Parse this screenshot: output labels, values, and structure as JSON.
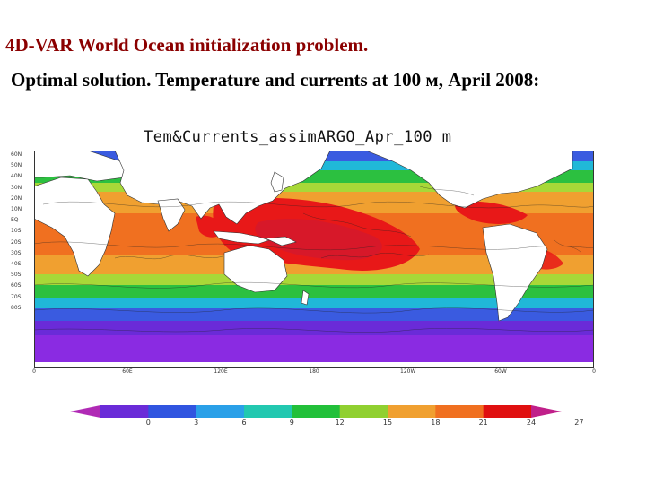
{
  "title_line1": "4D-VAR World Ocean initialization problem.",
  "title_line2": "Optimal solution. Temperature and currents at 100 м, April 2008:",
  "map": {
    "title": "Tem&Currents_assimARGO_Apr_100 m",
    "lat_labels": [
      "60N",
      "50N",
      "40N",
      "30N",
      "20N",
      "10N",
      "EQ",
      "10S",
      "20S",
      "30S",
      "40S",
      "50S",
      "60S",
      "70S",
      "80S"
    ],
    "lon_labels": [
      "0",
      "60E",
      "120E",
      "180",
      "120W",
      "60W",
      "0"
    ]
  },
  "colorbar": {
    "labels": [
      "0",
      "3",
      "6",
      "9",
      "12",
      "15",
      "18",
      "21",
      "24",
      "27"
    ],
    "colors": [
      "#b02ab5",
      "#6a2bd8",
      "#3055e0",
      "#2aa0e8",
      "#22c8b0",
      "#22c03a",
      "#90d030",
      "#f0a030",
      "#f07020",
      "#e01010",
      "#c0208a"
    ]
  },
  "map_colors": {
    "cold_purple": "#8a2be2",
    "blue": "#3a5be0",
    "cyan": "#20b8d8",
    "green": "#2cc040",
    "yellow_green": "#a8d838",
    "orange": "#f0a030",
    "dark_orange": "#f07020",
    "red": "#e81818",
    "land": "#ffffff"
  }
}
